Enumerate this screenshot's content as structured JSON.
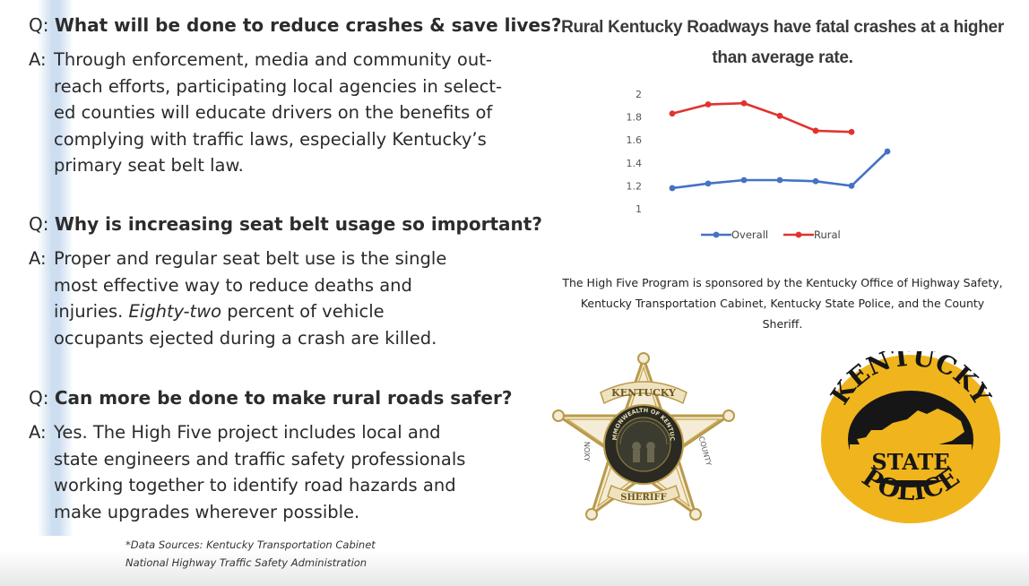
{
  "qa": [
    {
      "q_prefix": "Q:",
      "question": "What will be done to reduce crashes & save lives?",
      "a_prefix": "A:",
      "answer_lines": [
        "Through enforcement, media and community out-",
        "reach efforts, participating local agencies  in select-",
        "ed counties will educate drivers on the benefits of",
        "complying with traffic laws, especially Kentucky’s",
        "primary seat belt law."
      ]
    },
    {
      "q_prefix": "Q:",
      "question": "Why is increasing seat belt usage so important?",
      "a_prefix": "A:",
      "answer_lines": [
        "Proper and regular seat belt use is the single",
        "most effective way to reduce deaths and",
        "injuries. ",
        "occupants ejected during a crash are killed."
      ],
      "emphasis": "Eighty-two",
      "emphasis_after": " percent of vehicle"
    },
    {
      "q_prefix": "Q:",
      "question": "Can more be done to make rural roads safer?",
      "a_prefix": "A:",
      "answer_lines": [
        "Yes. The High Five project includes local and",
        "state engineers and traffic safety professionals",
        "working together to identify road hazards and",
        "make upgrades wherever possible."
      ]
    }
  ],
  "sources": {
    "line1": "*Data Sources: Kentucky Transportation Cabinet",
    "line2": "National Highway Traffic Safety Administration"
  },
  "chart_title": {
    "line1": "Rural Kentucky Roadways have fatal crashes at a higher",
    "line2": "than average rate."
  },
  "chart_data": {
    "type": "line",
    "title": "Rural Kentucky Roadways have fatal crashes at a higher than average rate.",
    "xlabel": "",
    "ylabel": "",
    "ylim": [
      1,
      2
    ],
    "yticks": [
      "1",
      "1.2",
      "1.4",
      "1.6",
      "1.8",
      "2"
    ],
    "x": [
      1,
      2,
      3,
      4,
      5,
      6,
      7
    ],
    "grid": false,
    "legend": "bottom",
    "series": [
      {
        "name": "Overall",
        "color": "#4472c4",
        "values": [
          1.18,
          1.22,
          1.25,
          1.25,
          1.24,
          1.2,
          1.5
        ]
      },
      {
        "name": "Rural",
        "color": "#e0332f",
        "values": [
          1.83,
          1.91,
          1.92,
          1.81,
          1.68,
          1.67,
          null
        ]
      }
    ]
  },
  "sponsor": {
    "line1": "The High Five Program is sponsored by the Kentucky Office of Highway Safety,",
    "line2": "Kentucky Transportation Cabinet, Kentucky State Police, and the County",
    "line3": "Sheriff."
  },
  "sheriff_badge": {
    "top_banner": "KENTUCKY",
    "bottom_banner": "SHERIFF",
    "left_arm": "NOXY",
    "right_arm": "COUNTY",
    "seal_text": "COMMONWEALTH OF KENTUCKY",
    "color": "#c8a44a"
  },
  "police_badge": {
    "top_text": "KENTUCKY",
    "middle_text": "STATE",
    "bottom_text": "POLICE",
    "gold": "#f0b51d",
    "dark": "#161616"
  }
}
